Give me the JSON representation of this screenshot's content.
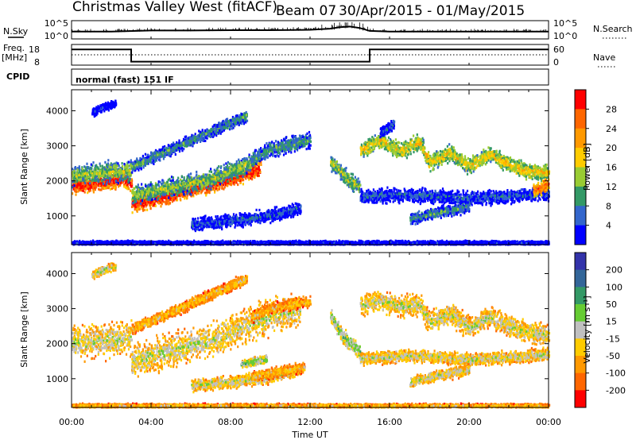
{
  "header": {
    "station": "Christmas Valley West (fitACF)",
    "beam": "Beam 07",
    "dates": "30/Apr/2015 - 01/May/2015"
  },
  "strips": {
    "nsky_label": "N.Sky",
    "nsearch_label": "N.Search",
    "left_top_tick": "10^5",
    "left_bottom_tick": "10^0",
    "right_top_tick": "10^5",
    "right_bottom_tick": "10^0",
    "freq_label": "Freq.",
    "freq_unit": "[MHz]",
    "freq_ticks": [
      "18",
      "8"
    ],
    "nave_label": "Nave",
    "nave_ticks": [
      "60",
      "0"
    ],
    "cpid_label": "CPID",
    "cpid_text": "normal (fast) 151 IF"
  },
  "chart_data": [
    {
      "type": "line",
      "name": "nsky-nsearch",
      "x_unit": "hours UT",
      "series": [
        {
          "name": "N.Sky",
          "x": [
            0,
            2,
            4,
            6,
            8,
            10,
            12,
            13,
            13.5,
            14,
            14.5,
            15,
            16,
            18,
            20,
            22,
            24
          ],
          "y": [
            2.0,
            2.0,
            2.3,
            2.3,
            2.4,
            2.4,
            2.5,
            2.8,
            3.2,
            3.4,
            3.0,
            2.2,
            2.0,
            2.0,
            2.0,
            2.0,
            2.0
          ]
        },
        {
          "name": "N.Search",
          "x": [
            0,
            24
          ],
          "y": [
            0,
            0
          ]
        }
      ],
      "ylim": [
        0,
        5
      ],
      "ylim_right": [
        0,
        5
      ]
    },
    {
      "type": "line",
      "name": "freq-nave",
      "x_unit": "hours UT",
      "series": [
        {
          "name": "Freq.",
          "x": [
            0,
            3,
            3,
            15,
            15,
            24
          ],
          "y": [
            15.6,
            15.6,
            9.7,
            9.7,
            15.6,
            15.6
          ]
        },
        {
          "name": "Nave",
          "x": [
            0,
            24
          ],
          "y": [
            30,
            30
          ]
        }
      ],
      "ylim": [
        8,
        18
      ],
      "ylim_right": [
        0,
        60
      ]
    },
    {
      "type": "heatmap",
      "name": "power",
      "title": "",
      "xlabel": "",
      "ylabel": "Slant Range [km]",
      "xlim": [
        0,
        24
      ],
      "ylim": [
        180,
        4600
      ],
      "yticks": [
        1000,
        2000,
        3000,
        4000
      ],
      "colorbar": {
        "label": "Power [dB]",
        "ticks": [
          "28",
          "24",
          "20",
          "16",
          "12",
          "8",
          "4"
        ],
        "colors": [
          "#ff0000",
          "#ff6600",
          "#ff9900",
          "#ffcc00",
          "#99cc33",
          "#339966",
          "#3366cc",
          "#0000ff"
        ]
      },
      "bands": [
        {
          "x": [
            0.0,
            1.0,
            2.0,
            2.6,
            3.0
          ],
          "y": [
            1850,
            1900,
            2000,
            2050,
            1900
          ],
          "width": 300,
          "level": 0
        },
        {
          "x": [
            0.0,
            1.0,
            2.0,
            3.0
          ],
          "y": [
            2150,
            2200,
            2250,
            2250
          ],
          "width": 380,
          "level": 4
        },
        {
          "x": [
            3.0,
            4.0,
            5.0,
            6.0,
            7.0,
            8.0,
            9.0,
            9.5
          ],
          "y": [
            1300,
            1450,
            1600,
            1750,
            1900,
            2050,
            2250,
            2350
          ],
          "width": 300,
          "level": 0
        },
        {
          "x": [
            3.0,
            5.0,
            7.0,
            9.0
          ],
          "y": [
            1600,
            1800,
            2050,
            2500
          ],
          "width": 350,
          "level": 4
        },
        {
          "x": [
            3.0,
            4.0,
            5.0,
            6.0,
            7.0,
            8.0,
            8.8
          ],
          "y": [
            2400,
            2650,
            2900,
            3150,
            3400,
            3650,
            3850
          ],
          "width": 220,
          "level": 5
        },
        {
          "x": [
            9.0,
            10.0,
            11.0,
            12.0
          ],
          "y": [
            2600,
            2900,
            3050,
            3150
          ],
          "width": 300,
          "level": 5
        },
        {
          "x": [
            6.0,
            8.0,
            10.0,
            11.5
          ],
          "y": [
            750,
            850,
            1000,
            1200
          ],
          "width": 250,
          "level": 6
        },
        {
          "x": [
            1.0,
            1.6,
            2.2
          ],
          "y": [
            3950,
            4100,
            4200
          ],
          "width": 150,
          "level": 7
        },
        {
          "x": [
            13.0,
            13.5,
            14.0,
            14.5
          ],
          "y": [
            2550,
            2250,
            2000,
            1800
          ],
          "width": 300,
          "level": 4
        },
        {
          "x": [
            14.5,
            15.5,
            16.5,
            17.5,
            18.0,
            19.0,
            20.0,
            21.0,
            22.0,
            23.0,
            24.0
          ],
          "y": [
            2850,
            3150,
            2850,
            3100,
            2500,
            2800,
            2400,
            2750,
            2450,
            2250,
            2250
          ],
          "width": 300,
          "level": 3
        },
        {
          "x": [
            14.5,
            17.0,
            20.0,
            22.0,
            24.0
          ],
          "y": [
            1550,
            1600,
            1500,
            1550,
            1650
          ],
          "width": 260,
          "level": 6
        },
        {
          "x": [
            17.0,
            18.5,
            20.0
          ],
          "y": [
            900,
            1100,
            1250
          ],
          "width": 200,
          "level": 5
        },
        {
          "x": [
            23.2,
            23.6,
            24.0
          ],
          "y": [
            1700,
            1800,
            1900
          ],
          "width": 250,
          "level": 1
        },
        {
          "x": [
            15.5,
            15.9,
            16.2
          ],
          "y": [
            3350,
            3500,
            3600
          ],
          "width": 200,
          "level": 6
        },
        {
          "x": [
            0.0,
            24.0
          ],
          "y": [
            220,
            220
          ],
          "width": 80,
          "level": 7
        }
      ]
    },
    {
      "type": "heatmap",
      "name": "velocity",
      "title": "",
      "xlabel": "Time UT",
      "ylabel": "Slant Range [km]",
      "xlim": [
        0,
        24
      ],
      "ylim": [
        180,
        4600
      ],
      "yticks": [
        1000,
        2000,
        3000,
        4000
      ],
      "xticks": [
        "00:00",
        "04:00",
        "08:00",
        "12:00",
        "16:00",
        "20:00",
        "00:00"
      ],
      "xtick_hours": [
        0,
        4,
        8,
        12,
        16,
        20,
        24
      ],
      "colorbar": {
        "label": "Velocity [m s⁻¹]",
        "ticks": [
          "200",
          "100",
          "50",
          "15",
          "-15",
          "-50",
          "-100",
          "-200"
        ],
        "colors": [
          "#3333aa",
          "#336699",
          "#339966",
          "#66cc33",
          "#c0c0c0",
          "#ffcc00",
          "#ff9900",
          "#ff6600",
          "#ff0000"
        ]
      },
      "bands": [
        {
          "x": [
            0.0,
            1.0,
            2.0,
            3.0
          ],
          "y": [
            2000,
            2050,
            2100,
            2150
          ],
          "width": 650,
          "level": 4
        },
        {
          "x": [
            3.0,
            4.0,
            5.0,
            6.0,
            7.0,
            8.0,
            9.0,
            10.0,
            11.5
          ],
          "y": [
            1500,
            1650,
            1800,
            1950,
            2100,
            2300,
            2550,
            2800,
            3000
          ],
          "width": 650,
          "level": 4
        },
        {
          "x": [
            3.0,
            4.0,
            5.0,
            6.0,
            7.0,
            8.0,
            8.8
          ],
          "y": [
            2400,
            2650,
            2900,
            3150,
            3400,
            3650,
            3850
          ],
          "width": 220,
          "level": 5
        },
        {
          "x": [
            9.0,
            10.0,
            11.0,
            12.0
          ],
          "y": [
            2750,
            3000,
            3100,
            3200
          ],
          "width": 200,
          "level": 5
        },
        {
          "x": [
            6.0,
            8.0,
            10.0,
            11.5
          ],
          "y": [
            800,
            900,
            1050,
            1250
          ],
          "width": 230,
          "level": 4
        },
        {
          "x": [
            9.0,
            10.0,
            11.0,
            11.7
          ],
          "y": [
            1050,
            1150,
            1250,
            1300
          ],
          "width": 200,
          "level": 5
        },
        {
          "x": [
            8.5,
            9.2,
            9.8
          ],
          "y": [
            1400,
            1500,
            1550
          ],
          "width": 150,
          "level": 3
        },
        {
          "x": [
            1.0,
            1.6,
            2.2
          ],
          "y": [
            3950,
            4100,
            4200
          ],
          "width": 150,
          "level": 4
        },
        {
          "x": [
            13.0,
            13.5,
            14.0,
            14.5
          ],
          "y": [
            2800,
            2300,
            2000,
            1750
          ],
          "width": 280,
          "level": 3
        },
        {
          "x": [
            14.5,
            15.5,
            16.5,
            17.5,
            18.0,
            19.0,
            20.0,
            21.0,
            22.0,
            23.0,
            24.0
          ],
          "y": [
            3100,
            3200,
            3050,
            3100,
            2600,
            2850,
            2450,
            2750,
            2500,
            2300,
            2250
          ],
          "width": 400,
          "level": 4
        },
        {
          "x": [
            14.5,
            17.0,
            20.0,
            22.0,
            24.0
          ],
          "y": [
            1550,
            1650,
            1550,
            1600,
            1700
          ],
          "width": 230,
          "level": 4
        },
        {
          "x": [
            17.0,
            18.5,
            20.0
          ],
          "y": [
            900,
            1100,
            1250
          ],
          "width": 200,
          "level": 4
        },
        {
          "x": [
            0.0,
            24.0
          ],
          "y": [
            220,
            220
          ],
          "width": 80,
          "level": 5
        }
      ]
    }
  ]
}
